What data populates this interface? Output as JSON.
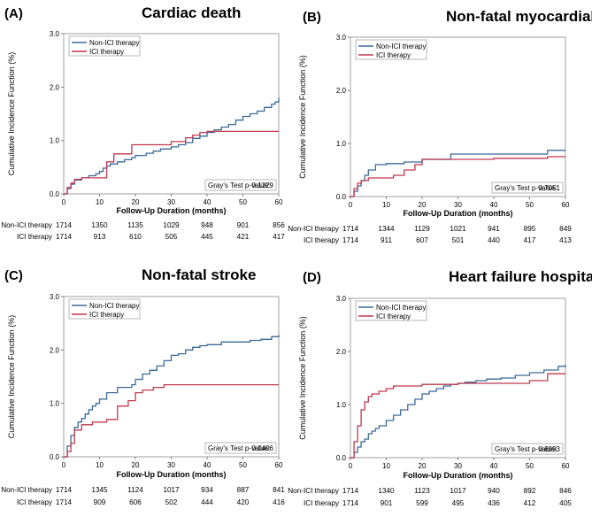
{
  "chart_data": [
    {
      "type": "line",
      "panel": "(A)",
      "title": "Cardiac death",
      "xlabel": "Follow-Up Duration (months)",
      "ylabel": "Cumulative Incidence Function (%)",
      "xlim": [
        0,
        60
      ],
      "ylim": [
        0,
        3
      ],
      "xticks": [
        "0",
        "10",
        "20",
        "30",
        "40",
        "50",
        "60"
      ],
      "yticks": [
        "0.0",
        "1.0",
        "2.0",
        "3.0"
      ],
      "legend": [
        "Non-ICI therapy",
        "ICI therapy"
      ],
      "pvalue_label": "Gray's Test p-value:",
      "pvalue": "0.1229",
      "series": [
        {
          "name": "Non-ICI therapy",
          "color": "#3a6a99",
          "x": [
            0,
            1,
            2,
            3,
            5,
            7,
            9,
            10,
            11,
            12,
            13,
            15,
            17,
            19,
            20,
            23,
            25,
            27,
            30,
            32,
            34,
            36,
            38,
            40,
            42,
            44,
            46,
            48,
            50,
            52,
            54,
            56,
            58,
            59,
            60
          ],
          "y": [
            0,
            0.1,
            0.18,
            0.26,
            0.3,
            0.34,
            0.38,
            0.42,
            0.48,
            0.52,
            0.56,
            0.6,
            0.64,
            0.68,
            0.72,
            0.76,
            0.8,
            0.84,
            0.88,
            0.92,
            0.96,
            1.04,
            1.08,
            1.15,
            1.2,
            1.25,
            1.3,
            1.38,
            1.45,
            1.5,
            1.55,
            1.62,
            1.68,
            1.72,
            1.8
          ]
        },
        {
          "name": "ICI therapy",
          "color": "#c0394f",
          "x": [
            0,
            1,
            2,
            3,
            5,
            10,
            12,
            14,
            19,
            28,
            30,
            34,
            36,
            38,
            40,
            60
          ],
          "y": [
            0,
            0.12,
            0.2,
            0.27,
            0.3,
            0.3,
            0.6,
            0.75,
            0.92,
            0.92,
            0.98,
            1.05,
            1.1,
            1.15,
            1.17,
            1.17
          ]
        }
      ],
      "risk_table": {
        "rows": [
          {
            "label": "Non-ICI therapy",
            "values": [
              "1714",
              "1350",
              "1135",
              "1029",
              "948",
              "901",
              "856"
            ]
          },
          {
            "label": "ICI therapy",
            "values": [
              "1714",
              "913",
              "610",
              "505",
              "445",
              "421",
              "417"
            ]
          }
        ]
      }
    },
    {
      "type": "line",
      "panel": "(B)",
      "title": "Non-fatal myocardial infarction",
      "xlabel": "Follow-Up Duration (months)",
      "ylabel": "Cumulative Incidence Function (%)",
      "xlim": [
        0,
        60
      ],
      "ylim": [
        0,
        3
      ],
      "xticks": [
        "0",
        "10",
        "20",
        "30",
        "40",
        "50",
        "60"
      ],
      "yticks": [
        "0.0",
        "1.0",
        "2.0",
        "3.0"
      ],
      "legend": [
        "Non-ICI therapy",
        "ICI therapy"
      ],
      "pvalue_label": "Gray's Test p-value:",
      "pvalue": "0.7051",
      "series": [
        {
          "name": "Non-ICI therapy",
          "color": "#3a6a99",
          "x": [
            0,
            1,
            2,
            3,
            4,
            5,
            7,
            10,
            15,
            20,
            28,
            40,
            55,
            60
          ],
          "y": [
            0,
            0.1,
            0.2,
            0.3,
            0.4,
            0.5,
            0.6,
            0.62,
            0.65,
            0.7,
            0.8,
            0.8,
            0.87,
            0.87
          ]
        },
        {
          "name": "ICI therapy",
          "color": "#c0394f",
          "x": [
            0,
            1,
            2,
            3,
            5,
            8,
            12,
            15,
            18,
            20,
            27,
            40,
            55,
            60
          ],
          "y": [
            0,
            0.15,
            0.25,
            0.3,
            0.35,
            0.35,
            0.4,
            0.5,
            0.6,
            0.7,
            0.7,
            0.72,
            0.75,
            0.75
          ]
        }
      ],
      "risk_table": {
        "rows": [
          {
            "label": "Non-ICI therapy",
            "values": [
              "1714",
              "1344",
              "1129",
              "1021",
              "941",
              "895",
              "849"
            ]
          },
          {
            "label": "ICI therapy",
            "values": [
              "1714",
              "911",
              "607",
              "501",
              "440",
              "417",
              "413"
            ]
          }
        ]
      }
    },
    {
      "type": "line",
      "panel": "(C)",
      "title": "Non-fatal stroke",
      "xlabel": "Follow-Up Duration (months)",
      "ylabel": "Cumulative Incidence Function (%)",
      "xlim": [
        0,
        60
      ],
      "ylim": [
        0,
        3
      ],
      "xticks": [
        "0",
        "10",
        "20",
        "30",
        "40",
        "50",
        "60"
      ],
      "yticks": [
        "0.0",
        "1.0",
        "2.0",
        "3.0"
      ],
      "legend": [
        "Non-ICI therapy",
        "ICI therapy"
      ],
      "pvalue_label": "Gray's Test p-value:",
      "pvalue": "0.0406",
      "series": [
        {
          "name": "Non-ICI therapy",
          "color": "#3a6a99",
          "x": [
            0,
            1,
            2,
            3,
            4,
            5,
            6,
            7,
            8,
            9,
            10,
            12,
            15,
            17,
            19,
            20,
            22,
            24,
            26,
            28,
            30,
            32,
            34,
            36,
            38,
            40,
            44,
            48,
            52,
            55,
            58,
            60
          ],
          "y": [
            0,
            0.2,
            0.4,
            0.55,
            0.65,
            0.72,
            0.8,
            0.88,
            0.95,
            1.0,
            1.08,
            1.2,
            1.3,
            1.3,
            1.35,
            1.45,
            1.55,
            1.62,
            1.7,
            1.8,
            1.9,
            1.93,
            2.0,
            2.05,
            2.08,
            2.1,
            2.15,
            2.15,
            2.18,
            2.2,
            2.25,
            2.28
          ]
        },
        {
          "name": "ICI therapy",
          "color": "#c0394f",
          "x": [
            0,
            1,
            2,
            3,
            5,
            8,
            12,
            15,
            18,
            20,
            22,
            25,
            28,
            40,
            60
          ],
          "y": [
            0,
            0.1,
            0.25,
            0.5,
            0.6,
            0.65,
            0.7,
            0.95,
            1.05,
            1.2,
            1.25,
            1.3,
            1.35,
            1.35,
            1.35
          ]
        }
      ],
      "risk_table": {
        "rows": [
          {
            "label": "Non-ICI therapy",
            "values": [
              "1714",
              "1345",
              "1124",
              "1017",
              "934",
              "887",
              "841"
            ]
          },
          {
            "label": "ICI therapy",
            "values": [
              "1714",
              "909",
              "606",
              "502",
              "444",
              "420",
              "416"
            ]
          }
        ]
      }
    },
    {
      "type": "line",
      "panel": "(D)",
      "title": "Heart failure hospitalization",
      "xlabel": "Follow-Up Duration (months)",
      "ylabel": "Cumulative Incidence Function (%)",
      "xlim": [
        0,
        60
      ],
      "ylim": [
        0,
        3
      ],
      "xticks": [
        "0",
        "10",
        "20",
        "30",
        "40",
        "50",
        "60"
      ],
      "yticks": [
        "0.0",
        "1.0",
        "2.0",
        "3.0"
      ],
      "legend": [
        "Non-ICI therapy",
        "ICI therapy"
      ],
      "pvalue_label": "Gray's Test p-value:",
      "pvalue": "0.6993",
      "series": [
        {
          "name": "Non-ICI therapy",
          "color": "#3a6a99",
          "x": [
            0,
            1,
            2,
            3,
            4,
            5,
            6,
            7,
            8,
            10,
            12,
            14,
            16,
            18,
            20,
            22,
            24,
            26,
            28,
            30,
            32,
            35,
            38,
            42,
            46,
            50,
            54,
            58,
            60
          ],
          "y": [
            0,
            0.1,
            0.2,
            0.3,
            0.35,
            0.45,
            0.5,
            0.55,
            0.6,
            0.7,
            0.8,
            0.9,
            1.0,
            1.1,
            1.2,
            1.25,
            1.3,
            1.35,
            1.38,
            1.4,
            1.42,
            1.45,
            1.48,
            1.5,
            1.55,
            1.6,
            1.65,
            1.72,
            1.75
          ]
        },
        {
          "name": "ICI therapy",
          "color": "#c0394f",
          "x": [
            0,
            1,
            2,
            3,
            4,
            5,
            6,
            8,
            10,
            12,
            20,
            30,
            50,
            55,
            60
          ],
          "y": [
            0,
            0.3,
            0.6,
            0.9,
            1.05,
            1.15,
            1.2,
            1.25,
            1.3,
            1.35,
            1.38,
            1.4,
            1.45,
            1.58,
            1.58
          ]
        }
      ],
      "risk_table": {
        "rows": [
          {
            "label": "Non-ICI therapy",
            "values": [
              "1714",
              "1340",
              "1123",
              "1017",
              "940",
              "892",
              "846"
            ]
          },
          {
            "label": "ICI therapy",
            "values": [
              "1714",
              "901",
              "599",
              "495",
              "436",
              "412",
              "405"
            ]
          }
        ]
      }
    }
  ]
}
